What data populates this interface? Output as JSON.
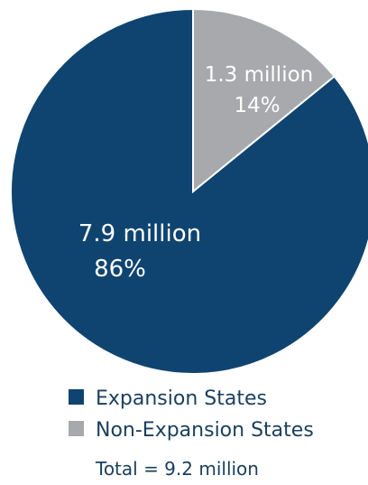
{
  "chart_data": {
    "type": "pie",
    "slices": [
      {
        "name": "Expansion States",
        "value": 7.9,
        "value_label": "7.9 million",
        "percent": 86,
        "percent_label": "86%",
        "color": "#0f4470"
      },
      {
        "name": "Non-Expansion States",
        "value": 1.3,
        "value_label": "1.3 million",
        "percent": 14,
        "percent_label": "14%",
        "color": "#a7a9ac"
      }
    ],
    "start_angle": "top",
    "direction": "clockwise",
    "legend_position": "bottom",
    "total_label": "Total = 9.2 million"
  }
}
